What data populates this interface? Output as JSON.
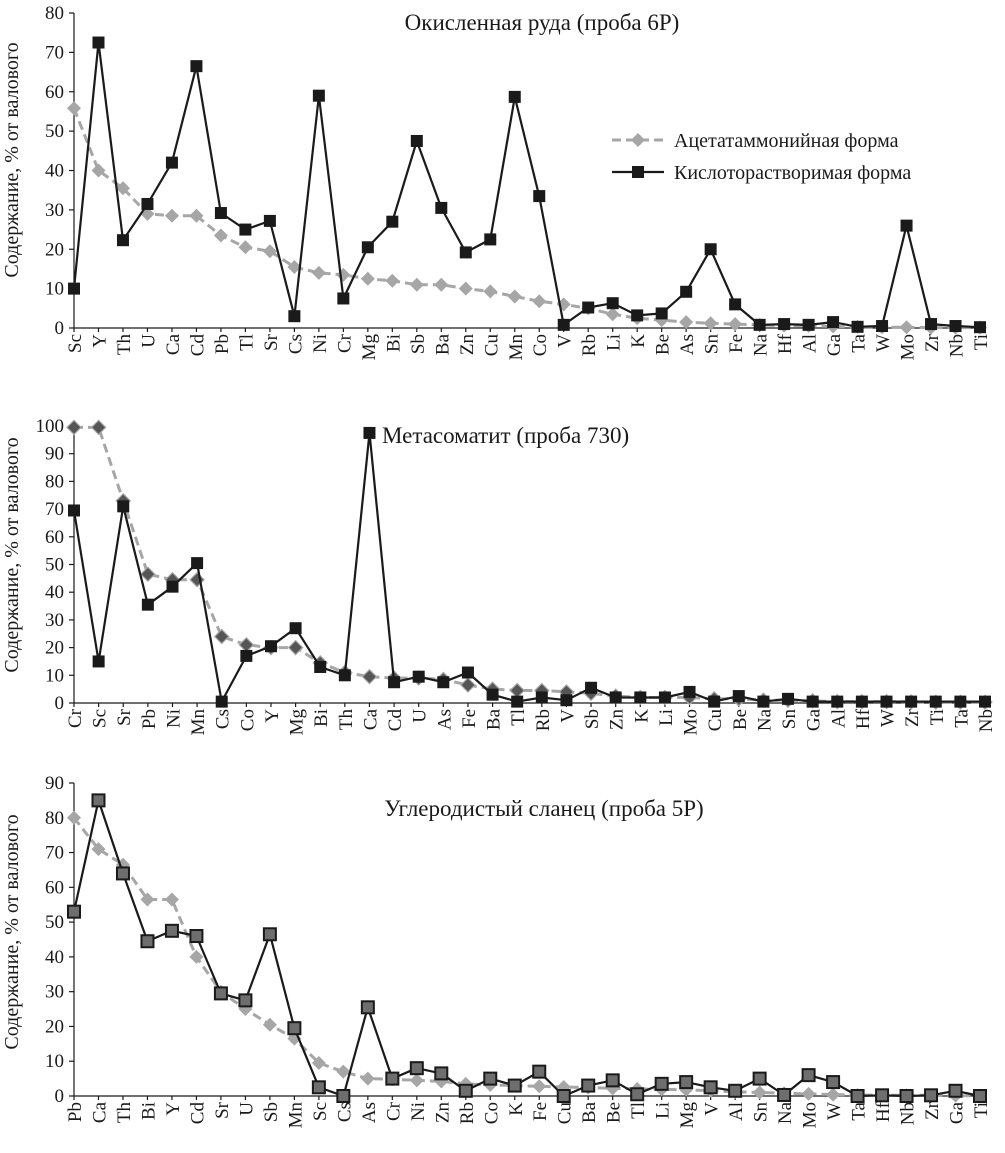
{
  "colors": {
    "acetate_series": "#a6a6a6",
    "acid_series": "#1a1a1a",
    "background": "#ffffff"
  },
  "legend": {
    "acetate_label": "Ацетатаммонийная форма",
    "acid_label": "Кислоторастворимая форма"
  },
  "chart_data": [
    {
      "type": "line",
      "title": "Окисленная руда (проба 6Р)",
      "ylabel": "Содержание, % от валового",
      "xlabel": "",
      "ylim": [
        0,
        80
      ],
      "yticks": [
        0,
        10,
        20,
        30,
        40,
        50,
        60,
        70,
        80
      ],
      "grid": false,
      "legend_position": "top-right",
      "categories": [
        "Sc",
        "Y",
        "Th",
        "U",
        "Ca",
        "Cd",
        "Pb",
        "Tl",
        "Sr",
        "Cs",
        "Ni",
        "Cr",
        "Mg",
        "Bi",
        "Sb",
        "Ba",
        "Zn",
        "Cu",
        "Mn",
        "Co",
        "V",
        "Rb",
        "Li",
        "K",
        "Be",
        "As",
        "Sn",
        "Fe",
        "Na",
        "Hf",
        "Al",
        "Ga",
        "Ta",
        "W",
        "Mo",
        "Zr",
        "Nb",
        "Ti"
      ],
      "series": [
        {
          "name": "Ацетатаммонийная форма",
          "style": "dashed-diamond",
          "values": [
            55.8,
            40,
            35.5,
            29,
            28.5,
            28.5,
            23.5,
            20.5,
            19.5,
            15.5,
            14,
            13.5,
            12.5,
            12,
            11,
            11,
            10,
            9.3,
            8,
            6.8,
            6,
            5,
            3.5,
            2.5,
            2,
            1.5,
            1.2,
            1,
            0.8,
            0.6,
            0.5,
            0.4,
            0.3,
            0.2,
            0.2,
            0.1,
            0.1,
            0.1
          ]
        },
        {
          "name": "Кислоторастворимая форма",
          "style": "solid-square",
          "values": [
            10,
            72.5,
            22.3,
            31.5,
            42,
            66.5,
            29.2,
            25,
            27.2,
            3,
            59,
            7.5,
            20.5,
            27,
            47.5,
            30.5,
            19.2,
            22.5,
            58.7,
            33.5,
            0.8,
            5.2,
            6.3,
            3.2,
            3.7,
            9.2,
            20,
            6,
            0.8,
            1,
            0.8,
            1.5,
            0.3,
            0.5,
            26,
            1,
            0.5,
            0.2
          ]
        }
      ]
    },
    {
      "type": "line",
      "title": "Метасоматит (проба 730)",
      "ylabel": "Содержание, % от валового",
      "xlabel": "",
      "ylim": [
        0,
        100
      ],
      "yticks": [
        0,
        10,
        20,
        30,
        40,
        50,
        60,
        70,
        80,
        90,
        100
      ],
      "grid": false,
      "categories": [
        "Cr",
        "Sc",
        "Sr",
        "Pb",
        "Ni",
        "Mn",
        "Cs",
        "Co",
        "Y",
        "Mg",
        "Bi",
        "Th",
        "Ca",
        "Cd",
        "U",
        "As",
        "Fe",
        "Ba",
        "Tl",
        "Rb",
        "V",
        "Sb",
        "Zn",
        "K",
        "Li",
        "Mo",
        "Cu",
        "Be",
        "Na",
        "Sn",
        "Ga",
        "Al",
        "Hf",
        "W",
        "Zr",
        "Ti",
        "Ta",
        "Nb"
      ],
      "series": [
        {
          "name": "Ацетатаммонийная форма",
          "style": "dashed-diamond",
          "values": [
            99.5,
            99.5,
            73,
            46.5,
            44.5,
            44.5,
            24,
            21,
            20,
            20,
            14.5,
            11,
            9.5,
            9,
            9,
            8.5,
            6.5,
            5,
            4.5,
            4.5,
            4,
            3.5,
            2.5,
            2,
            2,
            2,
            1.5,
            1.5,
            1,
            1,
            0.8,
            0.5,
            0.5,
            0.5,
            0.4,
            0.3,
            0.3,
            0.3
          ]
        },
        {
          "name": "Кислоторастворимая форма",
          "style": "solid-square",
          "values": [
            69.5,
            15,
            71,
            35.5,
            42,
            50.5,
            0.5,
            17,
            20.5,
            27,
            13,
            10,
            97.5,
            7.5,
            9.5,
            7.5,
            11,
            3,
            0.5,
            2,
            1,
            5.5,
            2,
            2,
            2,
            4,
            0.5,
            2.5,
            0.5,
            1.5,
            0.5,
            0.5,
            0.5,
            0.5,
            0.5,
            0.5,
            0.5,
            0.5
          ]
        }
      ]
    },
    {
      "type": "line",
      "title": "Углеродистый сланец (проба 5Р)",
      "ylabel": "Содержание, % от валового",
      "xlabel": "",
      "ylim": [
        0,
        90
      ],
      "yticks": [
        0,
        10,
        20,
        30,
        40,
        50,
        60,
        70,
        80,
        90
      ],
      "grid": false,
      "categories": [
        "Pb",
        "Ca",
        "Th",
        "Bi",
        "Y",
        "Cd",
        "Sr",
        "U",
        "Sb",
        "Mn",
        "Sc",
        "Cs",
        "As",
        "Cr",
        "Ni",
        "Zn",
        "Rb",
        "Co",
        "K",
        "Fe",
        "Cu",
        "Ba",
        "Be",
        "Tl",
        "Li",
        "Mg",
        "V",
        "Al",
        "Sn",
        "Na",
        "Mo",
        "W",
        "Ta",
        "Hf",
        "Nb",
        "Zr",
        "Ga",
        "Ti"
      ],
      "series": [
        {
          "name": "Ацетатаммонийная форма",
          "style": "dashed-diamond",
          "values": [
            80,
            71,
            66.5,
            56.5,
            56.5,
            40,
            30,
            25,
            20.5,
            16.5,
            9.5,
            7,
            5,
            4.8,
            4.5,
            4.2,
            3.5,
            3.2,
            3,
            2.8,
            2.6,
            2.4,
            2.2,
            2,
            1.9,
            1.8,
            1.5,
            1.2,
            1,
            0.8,
            0.6,
            0.4,
            0.3,
            0.2,
            0.2,
            0.2,
            0.1,
            0.1
          ]
        },
        {
          "name": "Кислоторастворимая форма",
          "style": "solid-square",
          "values": [
            53,
            85,
            64,
            44.5,
            47.5,
            46,
            29.5,
            27.5,
            46.5,
            19.5,
            2.5,
            0,
            25.5,
            5,
            8,
            6.5,
            1.5,
            5,
            3,
            7,
            0,
            3,
            4.5,
            0.5,
            3.5,
            4,
            2.5,
            1.5,
            5,
            0.3,
            6,
            4,
            0,
            0.2,
            0,
            0.2,
            1.5,
            0
          ]
        }
      ]
    }
  ]
}
